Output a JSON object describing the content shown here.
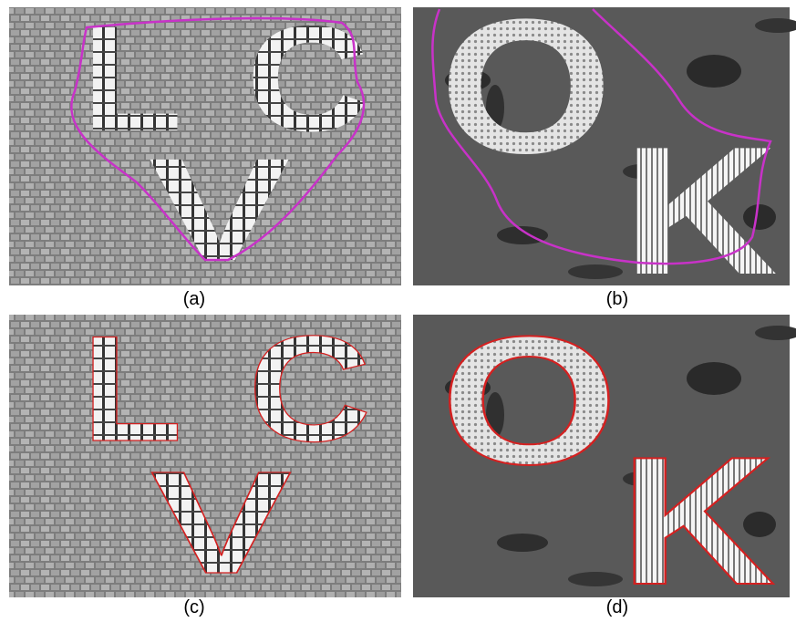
{
  "panels": [
    {
      "caption": "(a)",
      "letters": [
        "L",
        "C",
        "V"
      ]
    },
    {
      "caption": "(b)",
      "letters": [
        "O",
        "K"
      ]
    },
    {
      "caption": "(c)",
      "letters": [
        "L",
        "C",
        "V"
      ]
    },
    {
      "caption": "(d)",
      "letters": [
        "O",
        "K"
      ]
    }
  ]
}
